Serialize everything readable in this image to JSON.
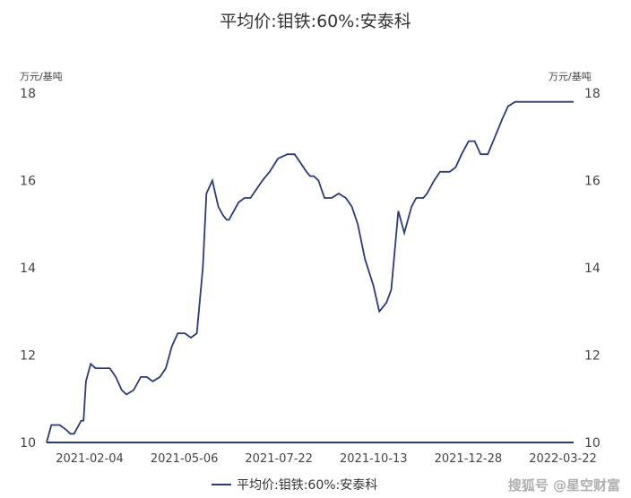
{
  "chart_data": {
    "type": "line",
    "title": "平均价:钼铁:60%:安泰科",
    "unit_left": "万元/基吨",
    "unit_right": "万元/基吨",
    "ylim": [
      10,
      18
    ],
    "yticks": [
      10,
      12,
      14,
      16,
      18
    ],
    "x_tick_labels": [
      "2021-02-04",
      "2021-05-06",
      "2021-07-22",
      "2021-10-13",
      "2021-12-28",
      "2022-03-22"
    ],
    "grid": false,
    "legend_position": "bottom",
    "series": [
      {
        "name": "平均价:钼铁:60%:安泰科",
        "color": "#2b3a7e",
        "x": [
          "2021-01-04",
          "2021-01-08",
          "2021-01-12",
          "2021-01-15",
          "2021-01-20",
          "2021-01-24",
          "2021-01-27",
          "2021-02-02",
          "2021-02-04",
          "2021-02-06",
          "2021-02-10",
          "2021-02-14",
          "2021-02-18",
          "2021-02-26",
          "2021-03-03",
          "2021-03-08",
          "2021-03-12",
          "2021-03-18",
          "2021-03-24",
          "2021-03-29",
          "2021-04-03",
          "2021-04-09",
          "2021-04-14",
          "2021-04-19",
          "2021-04-24",
          "2021-04-30",
          "2021-05-05",
          "2021-05-10",
          "2021-05-15",
          "2021-05-18",
          "2021-05-23",
          "2021-05-28",
          "2021-06-01",
          "2021-06-04",
          "2021-06-06",
          "2021-06-10",
          "2021-06-14",
          "2021-06-19",
          "2021-06-24",
          "2021-06-29",
          "2021-07-04",
          "2021-07-10",
          "2021-07-17",
          "2021-07-25",
          "2021-07-31",
          "2021-08-05",
          "2021-08-10",
          "2021-08-13",
          "2021-08-16",
          "2021-08-20",
          "2021-08-25",
          "2021-08-31",
          "2021-09-06",
          "2021-09-12",
          "2021-09-17",
          "2021-09-22",
          "2021-09-28",
          "2021-10-05",
          "2021-10-10",
          "2021-10-16",
          "2021-10-20",
          "2021-10-26",
          "2021-10-31",
          "2021-11-06",
          "2021-11-10",
          "2021-11-13",
          "2021-11-16",
          "2021-11-19",
          "2021-11-25",
          "2021-11-30",
          "2021-12-04",
          "2021-12-08",
          "2021-12-13",
          "2021-12-18",
          "2021-12-24",
          "2021-12-29",
          "2022-01-03",
          "2022-01-09",
          "2022-01-15",
          "2022-01-21",
          "2022-01-26",
          "2022-02-01",
          "2022-02-05",
          "2022-02-10",
          "2022-02-15",
          "2022-02-20",
          "2022-02-25",
          "2022-03-03",
          "2022-03-09",
          "2022-03-15",
          "2022-03-20",
          "2022-03-22"
        ],
        "values": [
          10.0,
          10.4,
          10.4,
          10.4,
          10.3,
          10.2,
          10.2,
          10.5,
          10.5,
          11.4,
          11.8,
          11.7,
          11.7,
          11.7,
          11.5,
          11.2,
          11.1,
          11.2,
          11.5,
          11.5,
          11.4,
          11.5,
          11.7,
          12.2,
          12.5,
          12.5,
          12.4,
          12.5,
          14.0,
          15.7,
          16.0,
          15.4,
          15.2,
          15.1,
          15.1,
          15.3,
          15.5,
          15.6,
          15.6,
          15.8,
          16.0,
          16.2,
          16.5,
          16.6,
          16.6,
          16.4,
          16.2,
          16.1,
          16.1,
          16.0,
          15.6,
          15.6,
          15.7,
          15.6,
          15.4,
          15.0,
          14.2,
          13.6,
          13.0,
          13.2,
          13.5,
          15.3,
          14.8,
          15.4,
          15.6,
          15.6,
          15.6,
          15.7,
          16.0,
          16.2,
          16.2,
          16.2,
          16.3,
          16.6,
          16.9,
          16.9,
          16.6,
          16.6,
          17.0,
          17.4,
          17.7,
          17.8,
          17.8,
          17.8,
          17.8,
          17.8,
          17.8,
          17.8,
          17.8,
          17.8,
          17.8,
          17.8
        ]
      }
    ]
  },
  "watermark": "搜狐号 @星空财富"
}
